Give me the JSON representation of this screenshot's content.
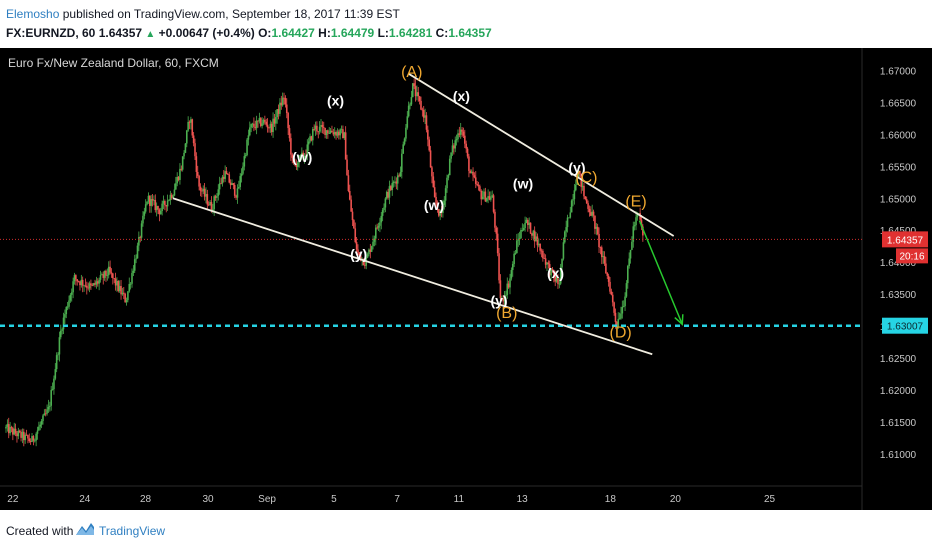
{
  "header": {
    "author": "Elemosho",
    "published_text": "published on TradingView.com, September 18, 2017 11:39 EST",
    "symbol": "FX:EURNZD, 60",
    "last": "1.64357",
    "change": "+0.00647 (+0.4%)",
    "o_label": "O:",
    "o_value": "1.64427",
    "h_label": "H:",
    "h_value": "1.64479",
    "l_label": "L:",
    "l_value": "1.64281",
    "c_label": "C:",
    "c_value": "1.64357"
  },
  "footer": {
    "created_with": "Created with",
    "brand": "TradingView"
  },
  "colors": {
    "up": "#4caf50",
    "down": "#ef5350",
    "wave_orange": "#f0a830",
    "support_dash": "#26d4e4",
    "price_line": "#d12d2d",
    "target_arrow": "#27c92e",
    "trendline": "#f0ede0"
  },
  "chart_data": {
    "type": "candlestick",
    "title": "Euro Fx/New Zealand Dollar, 60, FXCM",
    "ylim": [
      1.605,
      1.6735
    ],
    "xlim": [
      0,
      100
    ],
    "y_ticks": [
      "1.67000",
      "1.66500",
      "1.66000",
      "1.65500",
      "1.65000",
      "1.64500",
      "1.64000",
      "1.63500",
      "1.63000",
      "1.62500",
      "1.62000",
      "1.61500",
      "1.61000"
    ],
    "x_ticks": [
      {
        "x": 0.8,
        "label": "22"
      },
      {
        "x": 9.2,
        "label": "24"
      },
      {
        "x": 16.3,
        "label": "28"
      },
      {
        "x": 23.6,
        "label": "30"
      },
      {
        "x": 30.5,
        "label": "Sep"
      },
      {
        "x": 38.3,
        "label": "5"
      },
      {
        "x": 45.7,
        "label": "7"
      },
      {
        "x": 52.9,
        "label": "11"
      },
      {
        "x": 60.3,
        "label": "13"
      },
      {
        "x": 70.6,
        "label": "18"
      },
      {
        "x": 78.2,
        "label": "20"
      },
      {
        "x": 89.2,
        "label": "25"
      }
    ],
    "last_price": {
      "value": 1.64357,
      "label": "1.64357",
      "countdown": "20:16"
    },
    "support_level": {
      "value": 1.63007,
      "label": "1.63007"
    },
    "price_path": [
      [
        0,
        1.614
      ],
      [
        3,
        1.612
      ],
      [
        5,
        1.617
      ],
      [
        6.5,
        1.63
      ],
      [
        8,
        1.6375
      ],
      [
        10,
        1.636
      ],
      [
        12,
        1.6385
      ],
      [
        14,
        1.634
      ],
      [
        15.5,
        1.643
      ],
      [
        16.5,
        1.65
      ],
      [
        18,
        1.648
      ],
      [
        19.5,
        1.651
      ],
      [
        20.5,
        1.655
      ],
      [
        21.5,
        1.663
      ],
      [
        22.5,
        1.652
      ],
      [
        24,
        1.6485
      ],
      [
        25.5,
        1.654
      ],
      [
        27,
        1.6505
      ],
      [
        28.5,
        1.661
      ],
      [
        30,
        1.662
      ],
      [
        31,
        1.661
      ],
      [
        32.5,
        1.666
      ],
      [
        33.5,
        1.655
      ],
      [
        35,
        1.657
      ],
      [
        36,
        1.661
      ],
      [
        38,
        1.6605
      ],
      [
        39.5,
        1.66
      ],
      [
        40,
        1.651
      ],
      [
        41,
        1.6415
      ],
      [
        42,
        1.64
      ],
      [
        43,
        1.644
      ],
      [
        44.5,
        1.6505
      ],
      [
        46,
        1.654
      ],
      [
        46.8,
        1.6625
      ],
      [
        47.5,
        1.6675
      ],
      [
        49,
        1.6625
      ],
      [
        50,
        1.65
      ],
      [
        50.8,
        1.647
      ],
      [
        52,
        1.657
      ],
      [
        53.2,
        1.6615
      ],
      [
        54.2,
        1.654
      ],
      [
        55.5,
        1.6505
      ],
      [
        56.8,
        1.65
      ],
      [
        57.3,
        1.6435
      ],
      [
        57.8,
        1.6335
      ],
      [
        58.8,
        1.637
      ],
      [
        59.6,
        1.6425
      ],
      [
        60.6,
        1.6465
      ],
      [
        61.6,
        1.6445
      ],
      [
        62.6,
        1.6415
      ],
      [
        63.6,
        1.6385
      ],
      [
        64.6,
        1.6365
      ],
      [
        65.3,
        1.6445
      ],
      [
        66.3,
        1.651
      ],
      [
        66.8,
        1.6545
      ],
      [
        67.6,
        1.65
      ],
      [
        68.6,
        1.647
      ],
      [
        69.6,
        1.641
      ],
      [
        70.5,
        1.6365
      ],
      [
        71.3,
        1.6302
      ],
      [
        72.2,
        1.634
      ],
      [
        73.3,
        1.6455
      ],
      [
        73.9,
        1.6475
      ],
      [
        74.5,
        1.6436
      ]
    ],
    "trendlines": [
      {
        "name": "upper-trendline",
        "points": [
          [
            47.0,
            1.6695
          ],
          [
            78.0,
            1.6441
          ]
        ]
      },
      {
        "name": "lower-trendline",
        "points": [
          [
            19.5,
            1.65
          ],
          [
            75.5,
            1.6256
          ]
        ]
      }
    ],
    "target_arrow": {
      "points": [
        [
          74.0,
          1.6465
        ],
        [
          79.0,
          1.6303
        ]
      ]
    },
    "annotations": [
      {
        "text": "(A)",
        "x": 47.4,
        "y": 1.669,
        "color": "orange"
      },
      {
        "text": "(x)",
        "x": 38.5,
        "y": 1.6645,
        "color": "white"
      },
      {
        "text": "(x)",
        "x": 53.2,
        "y": 1.6652,
        "color": "white"
      },
      {
        "text": "(w)",
        "x": 34.6,
        "y": 1.6557,
        "color": "white"
      },
      {
        "text": "(w)",
        "x": 50.0,
        "y": 1.6482,
        "color": "white"
      },
      {
        "text": "(w)",
        "x": 60.4,
        "y": 1.6515,
        "color": "white"
      },
      {
        "text": "(y)",
        "x": 41.2,
        "y": 1.6405,
        "color": "white"
      },
      {
        "text": "(y)",
        "x": 66.7,
        "y": 1.654,
        "color": "white"
      },
      {
        "text": "(C)",
        "x": 67.8,
        "y": 1.6525,
        "color": "orange"
      },
      {
        "text": "(E)",
        "x": 73.6,
        "y": 1.6487,
        "color": "orange"
      },
      {
        "text": "(x)",
        "x": 64.2,
        "y": 1.6375,
        "color": "white"
      },
      {
        "text": "(y)",
        "x": 57.6,
        "y": 1.6332,
        "color": "white"
      },
      {
        "text": "(B)",
        "x": 58.5,
        "y": 1.6313,
        "color": "orange"
      },
      {
        "text": "(D)",
        "x": 71.8,
        "y": 1.6282,
        "color": "orange"
      }
    ]
  }
}
